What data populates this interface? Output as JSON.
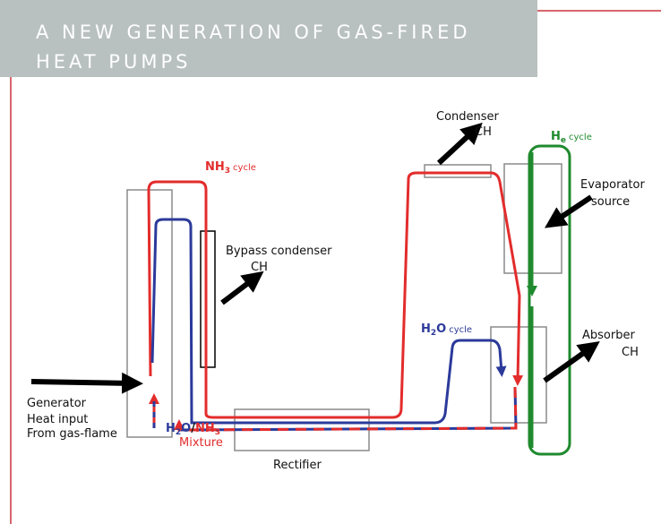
{
  "header": {
    "title_lines": [
      "A NEW GENERATION OF GAS-FIRED",
      "HEAT PUMPS"
    ]
  },
  "labels": {
    "nh3_cycle": {
      "main": "NH",
      "sub": "3",
      "suffix": "cycle"
    },
    "he_cycle": {
      "main": "H",
      "sub": "e",
      "suffix": "cycle"
    },
    "h2o_cycle": {
      "main": "H",
      "sub": "2",
      "rest": "O",
      "suffix": "cycle"
    },
    "mixture": {
      "h": "H",
      "h_sub": "2",
      "o": "O",
      "slash": "/",
      "nh": "NH",
      "nh_sub": "3",
      "caption": "Mixture"
    },
    "condenser": [
      "Condenser",
      "CH"
    ],
    "bypass": [
      "Bypass condenser",
      "CH"
    ],
    "evaporator": [
      "Evaporator",
      "source"
    ],
    "absorber": [
      "Absorber",
      "CH"
    ],
    "generator": [
      "Generator",
      "Heat input",
      "From gas-flame"
    ],
    "rectifier": "Rectifier"
  }
}
